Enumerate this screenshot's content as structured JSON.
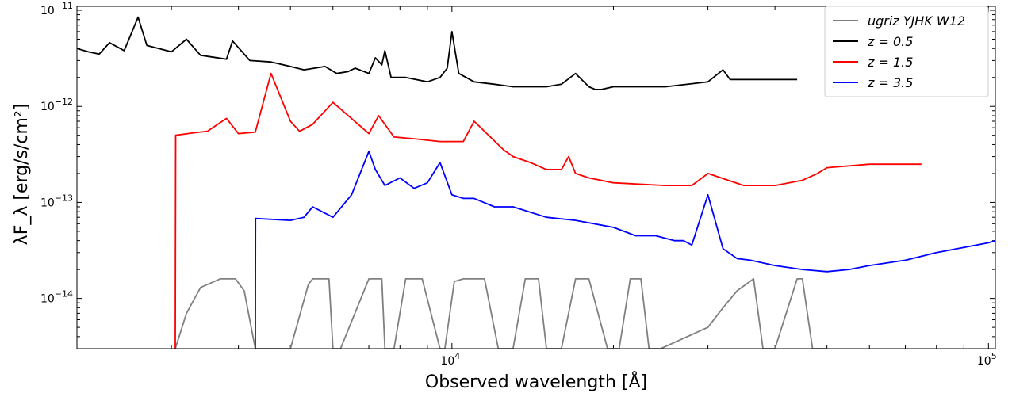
{
  "chart_data": {
    "type": "line",
    "xlabel": "Observed wavelength [Å]",
    "ylabel": "λF_λ [erg/s/cm²]",
    "xscale": "log",
    "yscale": "log",
    "xlim": [
      2000,
      103000
    ],
    "ylim": [
      3e-15,
      1.1e-11
    ],
    "x_ticks": [
      {
        "value": 10000,
        "mant": "10",
        "exp": "4"
      },
      {
        "value": 100000,
        "mant": "10",
        "exp": "5"
      }
    ],
    "y_ticks": [
      {
        "value": 1e-14,
        "mant": "10",
        "exp": "−14"
      },
      {
        "value": 1e-13,
        "mant": "10",
        "exp": "−13"
      },
      {
        "value": 1e-12,
        "mant": "10",
        "exp": "−12"
      },
      {
        "value": 1e-11,
        "mant": "10",
        "exp": "−11"
      }
    ],
    "legend_position": "top-right",
    "series": [
      {
        "name": "ugriz YJHK W12",
        "color": "#808080",
        "x": [
          3050,
          3200,
          3400,
          3700,
          3950,
          4100,
          4300,
          5000,
          5400,
          5500,
          5900,
          6000,
          6200,
          7000,
          7400,
          7500,
          7800,
          8200,
          8800,
          9500,
          9700,
          10100,
          10500,
          11500,
          12200,
          13000,
          13700,
          14500,
          15000,
          16000,
          17000,
          18000,
          19500,
          20500,
          21500,
          22500,
          23300,
          24500,
          30000,
          32000,
          34000,
          36500,
          38000,
          40000,
          44000,
          45000,
          47000,
          50000
        ],
        "y": [
          3e-15,
          7e-15,
          1.3e-14,
          1.6e-14,
          1.6e-14,
          1.2e-14,
          3e-15,
          3e-15,
          1.4e-14,
          1.6e-14,
          1.6e-14,
          3e-15,
          3e-15,
          1.6e-14,
          1.6e-14,
          3e-15,
          3e-15,
          1.6e-14,
          1.6e-14,
          3e-15,
          3e-15,
          1.5e-14,
          1.6e-14,
          1.6e-14,
          3e-15,
          3e-15,
          1.6e-14,
          1.6e-14,
          3e-15,
          3e-15,
          1.6e-14,
          1.6e-14,
          3e-15,
          3e-15,
          1.6e-14,
          1.6e-14,
          3e-15,
          3e-15,
          5e-15,
          8e-15,
          1.2e-14,
          1.6e-14,
          3e-15,
          3e-15,
          1.6e-14,
          1.6e-14,
          3e-15,
          3e-15
        ]
      },
      {
        "name": "z = 0.5",
        "color": "#000000",
        "x": [
          2000,
          2100,
          2200,
          2300,
          2450,
          2600,
          2700,
          3000,
          3200,
          3400,
          3800,
          3900,
          4200,
          4600,
          5000,
          5300,
          5800,
          6100,
          6400,
          6600,
          7000,
          7200,
          7400,
          7500,
          7700,
          8200,
          9000,
          9500,
          9800,
          10000,
          10300,
          11000,
          12000,
          13000,
          14000,
          15000,
          16000,
          17000,
          18000,
          18500,
          19000,
          20000,
          22000,
          25000,
          30000,
          32000,
          33000,
          35000,
          40000,
          44000
        ],
        "y": [
          4e-12,
          3.7e-12,
          3.5e-12,
          4.6e-12,
          3.8e-12,
          8.5e-12,
          4.3e-12,
          3.7e-12,
          5e-12,
          3.4e-12,
          3.1e-12,
          4.8e-12,
          3e-12,
          2.9e-12,
          2.6e-12,
          2.4e-12,
          2.6e-12,
          2.2e-12,
          2.3e-12,
          2.5e-12,
          2.2e-12,
          3.2e-12,
          2.7e-12,
          3.8e-12,
          2e-12,
          2e-12,
          1.8e-12,
          2e-12,
          2.5e-12,
          6e-12,
          2.2e-12,
          1.8e-12,
          1.7e-12,
          1.6e-12,
          1.6e-12,
          1.6e-12,
          1.7e-12,
          2.2e-12,
          1.6e-12,
          1.5e-12,
          1.5e-12,
          1.6e-12,
          1.6e-12,
          1.6e-12,
          1.8e-12,
          2.4e-12,
          1.9e-12,
          1.9e-12,
          1.9e-12,
          1.9e-12
        ]
      },
      {
        "name": "z = 1.5",
        "color": "#ff0000",
        "x": [
          3050,
          3055,
          3300,
          3500,
          3800,
          4000,
          4300,
          4600,
          5000,
          5200,
          5500,
          6000,
          7000,
          7300,
          7800,
          8500,
          9500,
          10500,
          11000,
          12500,
          12800,
          13000,
          14000,
          15000,
          16000,
          16500,
          17000,
          18000,
          20000,
          25000,
          28000,
          30000,
          35000,
          40000,
          45000,
          48000,
          50000,
          60000,
          70000,
          75000
        ],
        "y": [
          3e-15,
          5e-13,
          5.3e-13,
          5.5e-13,
          7.5e-13,
          5.2e-13,
          5.4e-13,
          2.2e-12,
          7e-13,
          5.5e-13,
          6.5e-13,
          1.1e-12,
          5.2e-13,
          8e-13,
          4.8e-13,
          4.6e-13,
          4.3e-13,
          4.3e-13,
          7e-13,
          3.5e-13,
          3.2e-13,
          3e-13,
          2.6e-13,
          2.2e-13,
          2.2e-13,
          3e-13,
          2e-13,
          1.8e-13,
          1.6e-13,
          1.5e-13,
          1.5e-13,
          2e-13,
          1.5e-13,
          1.5e-13,
          1.7e-13,
          2e-13,
          2.3e-13,
          2.5e-13,
          2.5e-13,
          2.5e-13
        ]
      },
      {
        "name": "z = 3.5",
        "color": "#0000ff",
        "x": [
          4300,
          4305,
          5000,
          5300,
          5500,
          6000,
          6500,
          7000,
          7200,
          7500,
          8000,
          8500,
          9000,
          9500,
          10000,
          10500,
          11000,
          12000,
          13000,
          15000,
          17000,
          20000,
          22000,
          24000,
          26000,
          27000,
          28000,
          30000,
          32000,
          34000,
          36000,
          40000,
          45000,
          50000,
          55000,
          60000,
          70000,
          80000,
          90000,
          100000,
          103000
        ],
        "y": [
          3e-15,
          6.8e-14,
          6.5e-14,
          7e-14,
          9e-14,
          7e-14,
          1.2e-13,
          3.4e-13,
          2.2e-13,
          1.5e-13,
          1.8e-13,
          1.4e-13,
          1.6e-13,
          2.6e-13,
          1.2e-13,
          1.1e-13,
          1.1e-13,
          9e-14,
          9e-14,
          7e-14,
          6.5e-14,
          5.5e-14,
          4.5e-14,
          4.5e-14,
          4e-14,
          4e-14,
          3.6e-14,
          1.2e-13,
          3.3e-14,
          2.6e-14,
          2.5e-14,
          2.2e-14,
          2e-14,
          1.9e-14,
          2e-14,
          2.2e-14,
          2.5e-14,
          3e-14,
          3.4e-14,
          3.8e-14,
          4e-14
        ]
      }
    ]
  }
}
